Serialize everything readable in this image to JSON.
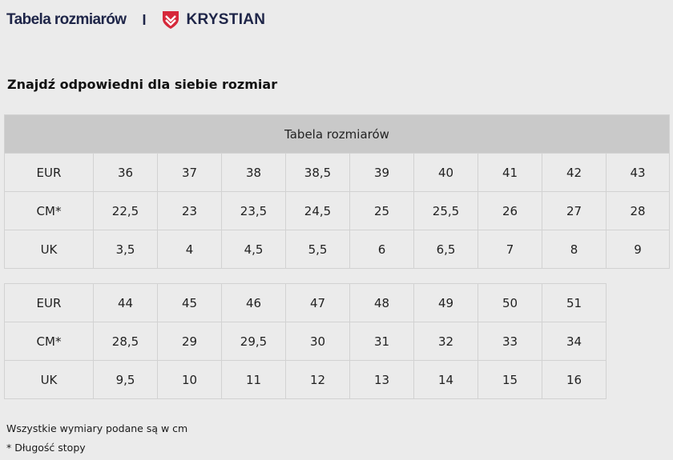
{
  "header": {
    "title": "Tabela rozmiarów",
    "separator": "I",
    "brand_name": "KRYSTIAN",
    "brand_color": "#d6283a",
    "text_color": "#1e2548"
  },
  "heading": "Znajdź odpowiedni dla siebie rozmiar",
  "table1": {
    "caption": "Tabela rozmiarów",
    "rows": [
      {
        "label": "EUR",
        "values": [
          "36",
          "37",
          "38",
          "38,5",
          "39",
          "40",
          "41",
          "42",
          "43"
        ]
      },
      {
        "label": "CM*",
        "values": [
          "22,5",
          "23",
          "23,5",
          "24,5",
          "25",
          "25,5",
          "26",
          "27",
          "28"
        ]
      },
      {
        "label": "UK",
        "values": [
          "3,5",
          "4",
          "4,5",
          "5,5",
          "6",
          "6,5",
          "7",
          "8",
          "9"
        ]
      }
    ]
  },
  "table2": {
    "rows": [
      {
        "label": "EUR",
        "values": [
          "44",
          "45",
          "46",
          "47",
          "48",
          "49",
          "50",
          "51"
        ]
      },
      {
        "label": "CM*",
        "values": [
          "28,5",
          "29",
          "29,5",
          "30",
          "31",
          "32",
          "33",
          "34"
        ]
      },
      {
        "label": "UK",
        "values": [
          "9,5",
          "10",
          "11",
          "12",
          "13",
          "14",
          "15",
          "16"
        ]
      }
    ]
  },
  "notes": {
    "units": "Wszystkie wymiary podane są w cm",
    "footnote": "* Długość stopy"
  }
}
